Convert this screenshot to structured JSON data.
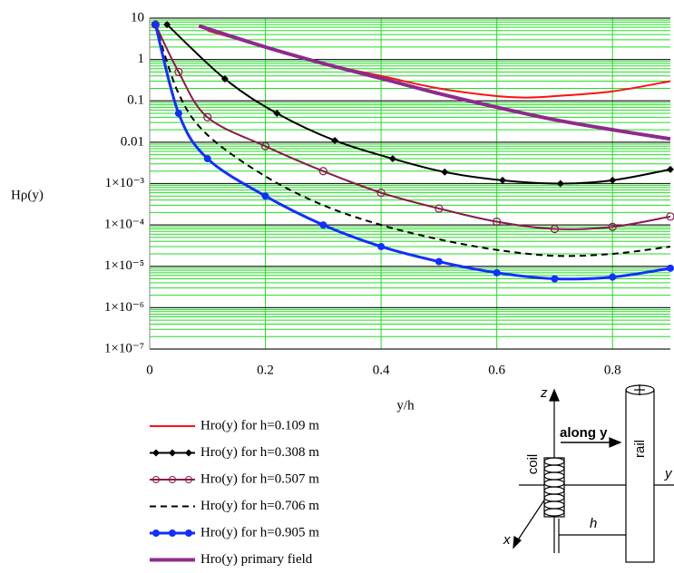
{
  "chart_data": {
    "type": "line",
    "x_label": "y/h",
    "y_label": "Hρ(y)",
    "y_scale": "log",
    "xlim": [
      0,
      0.9
    ],
    "ylim": [
      1e-07,
      10
    ],
    "xticks": [
      0,
      0.2,
      0.4,
      0.6,
      0.8
    ],
    "yticks": [
      10,
      1,
      0.1,
      0.01,
      {
        "value": 0.001,
        "label": "1×10⁻³"
      },
      {
        "value": 0.0001,
        "label": "1×10⁻⁴"
      },
      {
        "value": 1e-05,
        "label": "1×10⁻⁵"
      },
      {
        "value": 1e-06,
        "label": "1×10⁻⁶"
      },
      {
        "value": 1e-07,
        "label": "1×10⁻⁷"
      }
    ],
    "grid": true,
    "grid_color": "#22dd22",
    "series": [
      {
        "name": "Hro(y) for h=0.109 m",
        "color": "#ff1010",
        "marker": null,
        "dash": false,
        "x": [
          0.1,
          0.2,
          0.3,
          0.4,
          0.5,
          0.6,
          0.65,
          0.7,
          0.8,
          0.9
        ],
        "values": [
          5,
          2,
          0.8,
          0.4,
          0.2,
          0.13,
          0.12,
          0.13,
          0.17,
          0.3
        ]
      },
      {
        "name": "Hro(y) for h=0.308 m",
        "color": "#000000",
        "marker": "diamond",
        "dash": false,
        "x": [
          0.03,
          0.13,
          0.22,
          0.32,
          0.42,
          0.51,
          0.61,
          0.71,
          0.8,
          0.9
        ],
        "values": [
          7,
          0.34,
          0.05,
          0.011,
          0.004,
          0.0019,
          0.0012,
          0.001,
          0.0012,
          0.0022
        ]
      },
      {
        "name": "Hro(y) for h=0.507 m",
        "color": "#8b1a4a",
        "marker": "circle",
        "dash": false,
        "x": [
          0.01,
          0.05,
          0.1,
          0.2,
          0.3,
          0.4,
          0.5,
          0.6,
          0.7,
          0.8,
          0.9
        ],
        "values": [
          7,
          0.5,
          0.04,
          0.008,
          0.002,
          0.0006,
          0.00025,
          0.00012,
          8e-05,
          9e-05,
          0.00016
        ]
      },
      {
        "name": "Hro(y) for h=0.706 m",
        "color": "#000000",
        "marker": null,
        "dash": true,
        "x": [
          0.01,
          0.05,
          0.1,
          0.2,
          0.3,
          0.4,
          0.5,
          0.6,
          0.7,
          0.8,
          0.9
        ],
        "values": [
          7,
          0.15,
          0.015,
          0.0015,
          0.0003,
          0.0001,
          4.5e-05,
          2.5e-05,
          1.8e-05,
          2e-05,
          3e-05
        ]
      },
      {
        "name": "Hro(y) for h=0.905 m",
        "color": "#1030ff",
        "marker": "dot",
        "dash": false,
        "x": [
          0.01,
          0.05,
          0.1,
          0.2,
          0.3,
          0.4,
          0.5,
          0.6,
          0.7,
          0.8,
          0.9
        ],
        "values": [
          7,
          0.05,
          0.004,
          0.0005,
          0.0001,
          3e-05,
          1.3e-05,
          7e-06,
          5e-06,
          5.5e-06,
          9e-06
        ]
      },
      {
        "name": "Hro(y)  primary field",
        "color": "#8e2a8e",
        "marker": null,
        "dash": false,
        "x": [
          0.085,
          0.2,
          0.3,
          0.4,
          0.5,
          0.6,
          0.7,
          0.8,
          0.9
        ],
        "values": [
          6.5,
          2,
          0.8,
          0.35,
          0.15,
          0.07,
          0.035,
          0.02,
          0.012
        ]
      }
    ]
  },
  "diagram": {
    "z": "z",
    "along": "along y",
    "rail": "rail",
    "coil": "coil",
    "y": "y",
    "x": "x",
    "h": "h"
  }
}
